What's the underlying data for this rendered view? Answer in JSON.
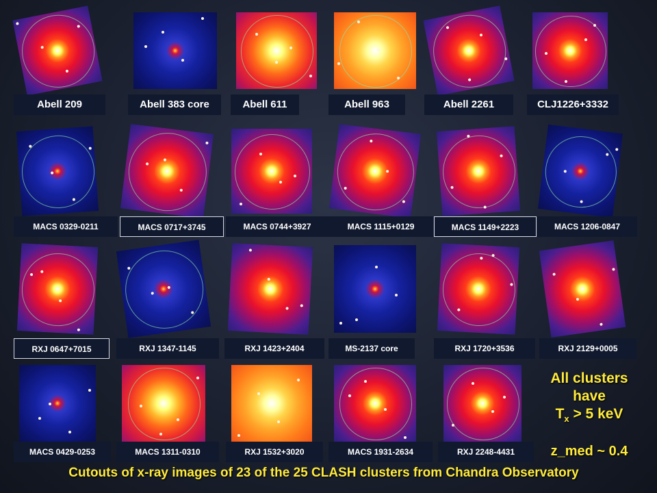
{
  "rows": [
    {
      "clusters": [
        {
          "name": "Abell 209",
          "style": "red",
          "rotated": true,
          "ring": true
        },
        {
          "name": "Abell 383 core",
          "style": "blue",
          "rotated": false,
          "ring": false
        },
        {
          "name": "Abell 611",
          "style": "hot",
          "rotated": false,
          "ring": true
        },
        {
          "name": "Abell 963",
          "style": "orange",
          "rotated": false,
          "ring": true
        },
        {
          "name": "Abell 2261",
          "style": "red",
          "rotated": true,
          "ring": true
        },
        {
          "name": "CLJ1226+3332",
          "style": "red",
          "rotated": false,
          "ring": true
        }
      ]
    },
    {
      "clusters": [
        {
          "name": "MACS 0329-0211",
          "style": "blue",
          "rotated": true,
          "ring": true,
          "outlined": false
        },
        {
          "name": "MACS 0717+3745",
          "style": "red",
          "rotated": true,
          "ring": true,
          "outlined": true
        },
        {
          "name": "MACS 0744+3927",
          "style": "red",
          "rotated": false,
          "ring": true,
          "outlined": false
        },
        {
          "name": "MACS 1115+0129",
          "style": "red",
          "rotated": true,
          "ring": true,
          "outlined": false
        },
        {
          "name": "MACS 1149+2223",
          "style": "red",
          "rotated": true,
          "ring": true,
          "outlined": true
        },
        {
          "name": "MACS 1206-0847",
          "style": "blue",
          "rotated": true,
          "ring": true,
          "outlined": false
        }
      ]
    },
    {
      "clusters": [
        {
          "name": "RXJ 0647+7015",
          "style": "red",
          "rotated": true,
          "ring": true,
          "outlined": true
        },
        {
          "name": "RXJ 1347-1145",
          "style": "blue",
          "rotated": true,
          "ring": true,
          "outlined": false
        },
        {
          "name": "RXJ 1423+2404",
          "style": "red",
          "rotated": true,
          "ring": false,
          "outlined": false
        },
        {
          "name": "MS-2137 core",
          "style": "blue",
          "rotated": false,
          "ring": false,
          "outlined": false
        },
        {
          "name": "RXJ 1720+3536",
          "style": "red",
          "rotated": true,
          "ring": true,
          "outlined": false
        },
        {
          "name": "RXJ 2129+0005",
          "style": "red",
          "rotated": true,
          "ring": false,
          "outlined": false
        }
      ]
    },
    {
      "clusters": [
        {
          "name": "MACS 0429-0253",
          "style": "blue",
          "rotated": false,
          "ring": false
        },
        {
          "name": "MACS 1311-0310",
          "style": "hot",
          "rotated": false,
          "ring": true
        },
        {
          "name": "RXJ 1532+3020",
          "style": "orange",
          "rotated": false,
          "ring": false
        },
        {
          "name": "MACS 1931-2634",
          "style": "red",
          "rotated": false,
          "ring": true
        },
        {
          "name": "RXJ 2248-4431",
          "style": "red",
          "rotated": false,
          "ring": true
        }
      ]
    }
  ],
  "note": {
    "line1": "All clusters",
    "line2": "have",
    "tx_main": "T",
    "tx_sub": "x",
    "tx_rest": " > 5 keV",
    "zmed": "z_med ~ 0.4"
  },
  "caption": "Cutouts of x-ray images of 23 of the 25 CLASH clusters from Chandra Observatory",
  "colors": {
    "caption": "#ffeb3b",
    "label_bg": "#11192e",
    "ring": "#8ce6aa"
  }
}
